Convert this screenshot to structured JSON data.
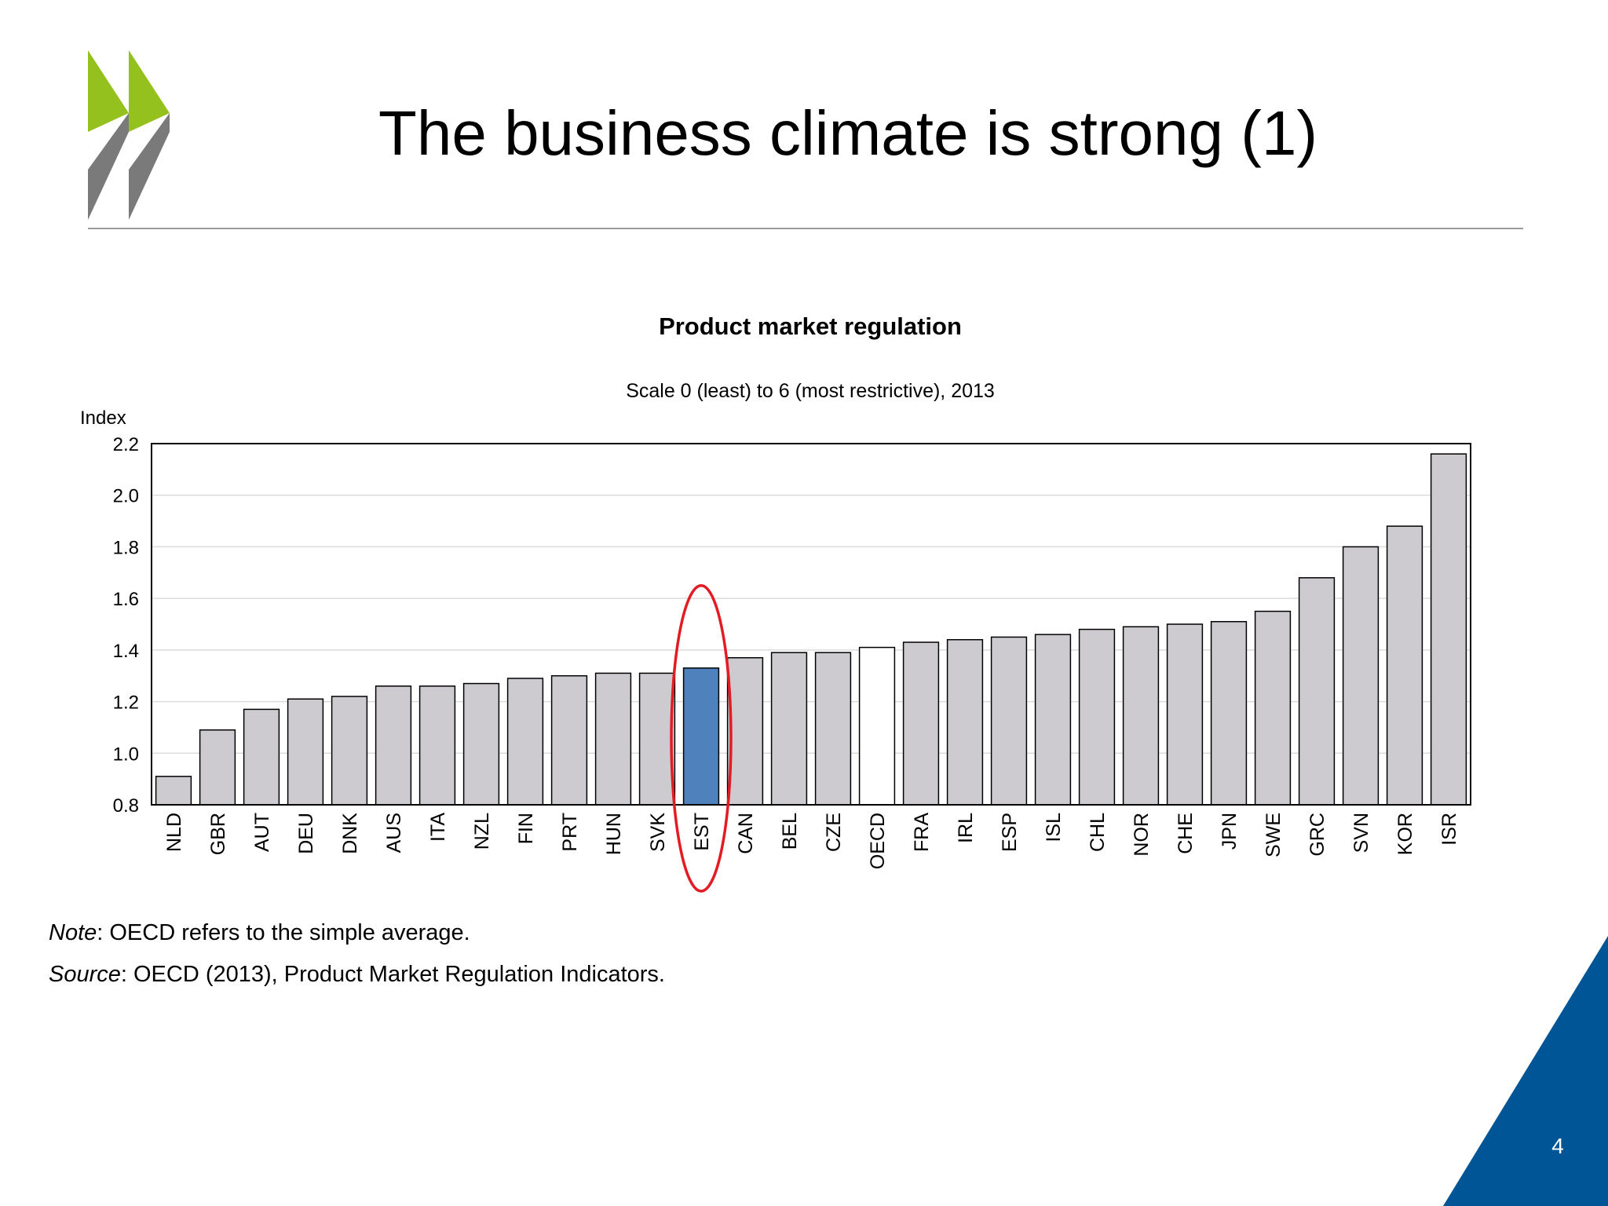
{
  "slide": {
    "title": "The business climate is strong (1)",
    "page_number": "4",
    "brand_colors": {
      "green": "#95c11f",
      "grey": "#7a7a7a",
      "blue": "#005596"
    }
  },
  "notes": {
    "note_label": "Note",
    "note_text": ": OECD refers to the simple average.",
    "source_label": "Source",
    "source_text": ": OECD (2013), Product Market Regulation Indicators."
  },
  "chart_data": {
    "type": "bar",
    "title": "Product market regulation",
    "subtitle": "Scale 0 (least) to 6 (most restrictive), 2013",
    "ylabel": "Index",
    "xlabel": "",
    "ylim": [
      0.8,
      2.2
    ],
    "yticks": [
      "0.8",
      "1.0",
      "1.2",
      "1.4",
      "1.6",
      "1.8",
      "2.0",
      "2.2"
    ],
    "grid": true,
    "categories": [
      "NLD",
      "GBR",
      "AUT",
      "DEU",
      "DNK",
      "AUS",
      "ITA",
      "NZL",
      "FIN",
      "PRT",
      "HUN",
      "SVK",
      "EST",
      "CAN",
      "BEL",
      "CZE",
      "OECD",
      "FRA",
      "IRL",
      "ESP",
      "ISL",
      "CHL",
      "NOR",
      "CHE",
      "JPN",
      "SWE",
      "GRC",
      "SVN",
      "KOR",
      "ISR"
    ],
    "values": [
      0.91,
      1.09,
      1.17,
      1.21,
      1.22,
      1.26,
      1.26,
      1.27,
      1.29,
      1.3,
      1.31,
      1.31,
      1.33,
      1.37,
      1.39,
      1.39,
      1.41,
      1.43,
      1.44,
      1.45,
      1.46,
      1.48,
      1.49,
      1.5,
      1.51,
      1.55,
      1.68,
      1.8,
      1.88,
      2.16
    ],
    "highlight": {
      "category": "EST",
      "color": "#4f81bd",
      "circled": true,
      "circle_color": "#e31b23"
    },
    "average": {
      "category": "OECD",
      "color": "#ffffff"
    },
    "bar_color": "#cdcbcf"
  }
}
